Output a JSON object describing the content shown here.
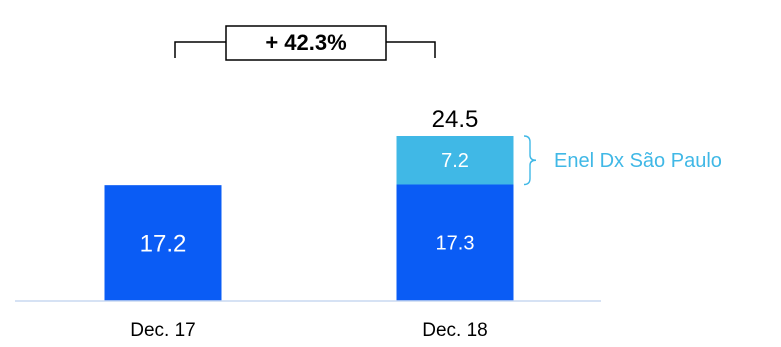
{
  "chart_data": {
    "type": "bar",
    "stacked": true,
    "categories": [
      "Dec. 17",
      "Dec. 18"
    ],
    "series": [
      {
        "values": [
          17.2,
          17.3
        ],
        "labels": [
          "17.2",
          "17.3"
        ],
        "color": "#0a5cf5"
      },
      {
        "name": "Enel Dx São Paulo",
        "values": [
          0,
          7.2
        ],
        "labels": [
          "",
          "7.2"
        ],
        "color": "#40b8e6"
      }
    ],
    "totals": {
      "values": [
        null,
        24.5
      ],
      "labels": [
        "",
        "24.5"
      ]
    },
    "growth_label": "+ 42.3%",
    "ylim": [
      0,
      24.5
    ],
    "grid": false,
    "colors": {
      "axis": "#c9d8f1",
      "text": "#000000",
      "bar_label": "#ffffff",
      "annotation": "#40b8e6"
    }
  }
}
